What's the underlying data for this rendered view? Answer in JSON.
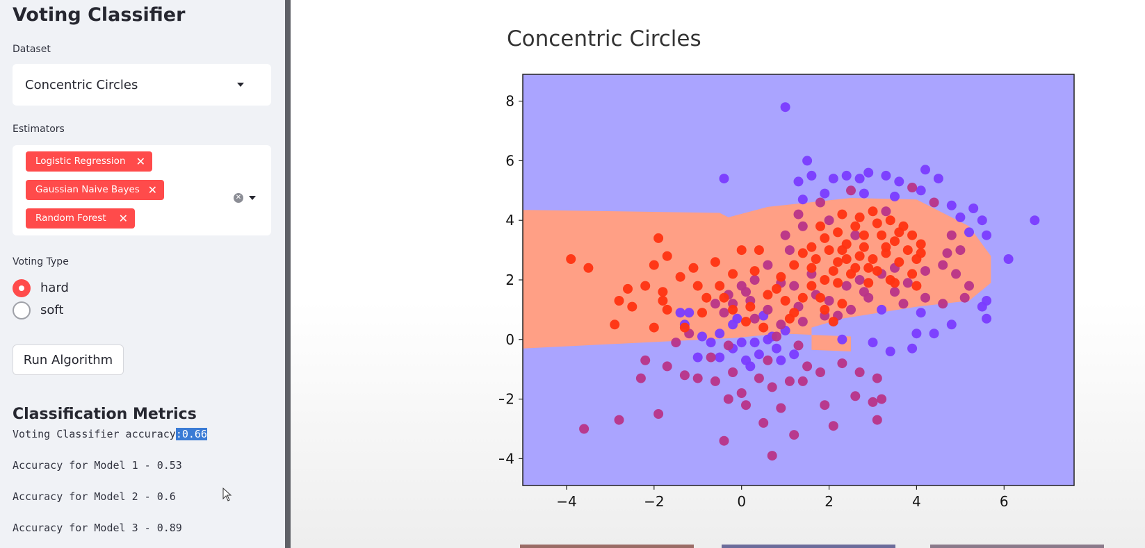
{
  "sidebar": {
    "title": "Voting Classifier",
    "dataset": {
      "label": "Dataset",
      "value": "Concentric Circles"
    },
    "estimators": {
      "label": "Estimators",
      "tags": [
        "Logistic Regression",
        "Gaussian Naive Bayes",
        "Random Forest"
      ]
    },
    "voting": {
      "label": "Voting Type",
      "options": [
        "hard",
        "soft"
      ],
      "selected": "hard"
    },
    "run_button": "Run Algorithm",
    "metrics": {
      "title": "Classification Metrics",
      "voting_prefix": "Voting Classifier accuracy",
      "voting_value": ":0.66",
      "lines": [
        "Accuracy for Model 1 - 0.53",
        "Accuracy for Model 2 - 0.6",
        "Accuracy for Model 3 - 0.89"
      ]
    }
  },
  "chart_data": {
    "type": "scatter",
    "title": "Concentric Circles",
    "xlim": [
      -5,
      7.6
    ],
    "ylim": [
      -4.9,
      8.9
    ],
    "xticks": [
      -4,
      -2,
      0,
      2,
      4,
      6
    ],
    "yticks": [
      -4,
      -2,
      0,
      2,
      4,
      6,
      8
    ],
    "grid": false,
    "background_regions": {
      "class0_color": "#aaa4ff",
      "class1_color": "#ff9f85"
    },
    "series": [
      {
        "color": "#7a3cff",
        "points": [
          [
            -0.4,
            5.4
          ],
          [
            1.0,
            7.8
          ],
          [
            1.5,
            6.0
          ],
          [
            1.6,
            5.5
          ],
          [
            2.1,
            5.4
          ],
          [
            2.4,
            5.5
          ],
          [
            2.7,
            5.4
          ],
          [
            2.9,
            5.6
          ],
          [
            3.3,
            5.5
          ],
          [
            3.6,
            5.3
          ],
          [
            4.2,
            5.7
          ],
          [
            4.5,
            5.4
          ],
          [
            4.1,
            5.0
          ],
          [
            3.5,
            4.8
          ],
          [
            2.8,
            4.9
          ],
          [
            1.3,
            5.3
          ],
          [
            1.9,
            4.9
          ],
          [
            1.4,
            4.7
          ],
          [
            4.8,
            4.5
          ],
          [
            5.0,
            4.1
          ],
          [
            5.3,
            4.4
          ],
          [
            5.5,
            4.0
          ],
          [
            5.2,
            3.6
          ],
          [
            5.6,
            3.5
          ],
          [
            6.7,
            4.0
          ],
          [
            6.1,
            2.7
          ],
          [
            5.6,
            1.3
          ],
          [
            5.5,
            1.1
          ],
          [
            5.6,
            0.7
          ],
          [
            4.8,
            0.5
          ],
          [
            4.1,
            0.9
          ],
          [
            3.2,
            1.0
          ],
          [
            3.4,
            -0.4
          ],
          [
            3.9,
            -0.3
          ],
          [
            3.0,
            -0.1
          ],
          [
            2.3,
            0.0
          ],
          [
            4.0,
            0.2
          ],
          [
            4.4,
            0.2
          ],
          [
            -1.2,
            0.9
          ],
          [
            -1.4,
            0.9
          ],
          [
            -0.2,
            0.5
          ],
          [
            -1.3,
            0.5
          ],
          [
            -0.5,
            0.2
          ],
          [
            0.0,
            -0.1
          ],
          [
            0.3,
            -0.1
          ],
          [
            0.6,
            0.0
          ],
          [
            0.8,
            -0.3
          ],
          [
            -1.0,
            -0.6
          ],
          [
            0.1,
            -0.7
          ],
          [
            0.9,
            -0.7
          ],
          [
            -0.2,
            -0.3
          ],
          [
            0.4,
            -0.5
          ],
          [
            -0.7,
            -0.1
          ],
          [
            0.2,
            -0.9
          ],
          [
            -0.5,
            -0.6
          ],
          [
            0.7,
            0.1
          ],
          [
            1.0,
            0.3
          ],
          [
            -0.1,
            0.7
          ],
          [
            0.5,
            0.8
          ],
          [
            1.2,
            -0.5
          ],
          [
            -0.9,
            0.1
          ]
        ]
      },
      {
        "color": "#b83488",
        "points": [
          [
            0.0,
            -1.8
          ],
          [
            -0.3,
            -2.0
          ],
          [
            0.1,
            -2.2
          ],
          [
            0.7,
            -1.6
          ],
          [
            1.1,
            -1.4
          ],
          [
            1.4,
            -1.4
          ],
          [
            1.8,
            -1.1
          ],
          [
            2.3,
            -0.8
          ],
          [
            2.7,
            -1.1
          ],
          [
            3.1,
            -1.3
          ],
          [
            3.2,
            -2.0
          ],
          [
            3.0,
            -2.1
          ],
          [
            2.6,
            -1.9
          ],
          [
            1.9,
            -2.2
          ],
          [
            0.9,
            -2.3
          ],
          [
            0.5,
            -2.8
          ],
          [
            1.2,
            -3.2
          ],
          [
            2.1,
            -2.9
          ],
          [
            3.1,
            -2.7
          ],
          [
            -0.4,
            -3.4
          ],
          [
            0.7,
            -3.9
          ],
          [
            -1.9,
            -2.5
          ],
          [
            -2.8,
            -2.7
          ],
          [
            -3.6,
            -3.0
          ],
          [
            -2.3,
            -1.3
          ],
          [
            -2.2,
            -0.7
          ],
          [
            -1.7,
            -0.9
          ],
          [
            -1.3,
            -1.2
          ],
          [
            -1.0,
            -1.3
          ],
          [
            -0.6,
            -1.4
          ],
          [
            -0.7,
            -0.6
          ],
          [
            -0.2,
            -1.1
          ],
          [
            0.4,
            -1.3
          ],
          [
            1.5,
            -0.9
          ],
          [
            2.2,
            0.8
          ],
          [
            2.5,
            1.0
          ],
          [
            2.9,
            1.4
          ],
          [
            3.5,
            1.6
          ],
          [
            3.8,
            1.9
          ],
          [
            4.2,
            2.3
          ],
          [
            4.6,
            2.5
          ],
          [
            4.9,
            2.2
          ],
          [
            5.2,
            1.8
          ],
          [
            5.1,
            1.4
          ],
          [
            4.6,
            1.2
          ],
          [
            4.2,
            1.4
          ],
          [
            3.7,
            1.2
          ],
          [
            4.7,
            2.9
          ],
          [
            5.0,
            3.0
          ],
          [
            4.8,
            3.5
          ],
          [
            3.3,
            4.3
          ],
          [
            2.6,
            3.5
          ],
          [
            2.0,
            4.0
          ],
          [
            1.4,
            3.8
          ],
          [
            1.3,
            4.2
          ],
          [
            1.0,
            3.5
          ],
          [
            1.1,
            3.0
          ],
          [
            0.6,
            2.5
          ],
          [
            0.3,
            2.0
          ],
          [
            0.0,
            1.8
          ],
          [
            -0.3,
            1.5
          ],
          [
            -0.6,
            1.2
          ],
          [
            -0.2,
            1.2
          ],
          [
            0.2,
            1.3
          ],
          [
            0.6,
            1.0
          ],
          [
            1.3,
            1.1
          ],
          [
            1.7,
            1.5
          ],
          [
            2.0,
            1.3
          ],
          [
            2.4,
            1.8
          ],
          [
            2.7,
            2.0
          ],
          [
            3.2,
            2.2
          ],
          [
            3.5,
            2.4
          ],
          [
            1.6,
            2.2
          ],
          [
            1.2,
            1.8
          ],
          [
            0.9,
            1.9
          ],
          [
            -0.4,
            0.9
          ],
          [
            0.3,
            0.7
          ],
          [
            0.9,
            0.5
          ],
          [
            1.4,
            0.6
          ],
          [
            1.9,
            0.8
          ],
          [
            0.1,
            1.6
          ],
          [
            2.8,
            1.6
          ],
          [
            4.4,
            4.6
          ],
          [
            3.9,
            5.1
          ],
          [
            2.5,
            5.0
          ],
          [
            1.8,
            4.6
          ],
          [
            0.8,
            0.1
          ],
          [
            0.6,
            -0.7
          ],
          [
            1.3,
            -0.2
          ],
          [
            -0.3,
            -0.2
          ],
          [
            -1.5,
            -0.1
          ],
          [
            -1.2,
            0.2
          ]
        ]
      },
      {
        "color": "#ff3311",
        "points": [
          [
            -3.9,
            2.7
          ],
          [
            -3.5,
            2.4
          ],
          [
            -2.6,
            1.7
          ],
          [
            -2.8,
            1.3
          ],
          [
            -2.5,
            1.1
          ],
          [
            -2.9,
            0.5
          ],
          [
            -2.0,
            2.5
          ],
          [
            -2.2,
            1.8
          ],
          [
            -1.8,
            1.6
          ],
          [
            -1.8,
            1.3
          ],
          [
            -1.7,
            1.0
          ],
          [
            -2.0,
            0.4
          ],
          [
            -1.7,
            2.8
          ],
          [
            -1.4,
            2.1
          ],
          [
            -1.1,
            2.4
          ],
          [
            -1.0,
            1.8
          ],
          [
            -0.8,
            1.4
          ],
          [
            -0.5,
            1.8
          ],
          [
            -0.2,
            2.2
          ],
          [
            -0.6,
            2.6
          ],
          [
            -1.9,
            3.4
          ],
          [
            0.0,
            3.0
          ],
          [
            0.4,
            3.0
          ],
          [
            0.8,
            1.7
          ],
          [
            1.0,
            1.3
          ],
          [
            1.4,
            1.4
          ],
          [
            1.9,
            1.0
          ],
          [
            2.1,
            0.6
          ],
          [
            2.3,
            1.2
          ],
          [
            1.6,
            1.8
          ],
          [
            0.3,
            2.3
          ],
          [
            -0.2,
            1.0
          ],
          [
            0.6,
            1.5
          ],
          [
            1.2,
            0.9
          ],
          [
            1.6,
            2.4
          ],
          [
            1.9,
            2.0
          ],
          [
            2.0,
            3.0
          ],
          [
            2.2,
            3.6
          ],
          [
            2.4,
            3.2
          ],
          [
            2.6,
            3.8
          ],
          [
            2.8,
            3.1
          ],
          [
            3.0,
            2.7
          ],
          [
            3.2,
            3.5
          ],
          [
            3.3,
            2.9
          ],
          [
            3.5,
            3.3
          ],
          [
            3.6,
            2.6
          ],
          [
            3.8,
            3.0
          ],
          [
            4.0,
            2.7
          ],
          [
            4.1,
            3.2
          ],
          [
            2.3,
            4.2
          ],
          [
            2.7,
            4.1
          ],
          [
            3.0,
            4.3
          ],
          [
            3.4,
            4.0
          ],
          [
            3.7,
            3.8
          ],
          [
            3.1,
            3.9
          ],
          [
            2.2,
            2.6
          ],
          [
            2.5,
            2.2
          ],
          [
            2.9,
            2.4
          ],
          [
            3.4,
            2.0
          ],
          [
            3.9,
            2.2
          ],
          [
            1.9,
            3.4
          ],
          [
            2.1,
            2.3
          ],
          [
            2.7,
            2.8
          ],
          [
            3.3,
            3.1
          ],
          [
            3.6,
            3.6
          ],
          [
            2.4,
            2.7
          ],
          [
            2.8,
            3.5
          ],
          [
            3.9,
            3.5
          ],
          [
            4.1,
            2.9
          ],
          [
            1.6,
            3.1
          ],
          [
            1.7,
            2.7
          ],
          [
            2.6,
            2.4
          ],
          [
            1.2,
            2.5
          ],
          [
            0.9,
            2.1
          ],
          [
            1.1,
            0.7
          ],
          [
            -1.3,
            0.4
          ],
          [
            -0.9,
            0.9
          ],
          [
            -0.4,
            1.4
          ],
          [
            0.2,
            1.1
          ],
          [
            0.5,
            0.4
          ],
          [
            0.1,
            0.6
          ],
          [
            1.8,
            1.4
          ],
          [
            2.9,
            1.9
          ],
          [
            3.1,
            2.3
          ],
          [
            3.5,
            1.9
          ],
          [
            4.0,
            1.8
          ],
          [
            2.2,
            1.9
          ],
          [
            1.4,
            2.9
          ],
          [
            1.8,
            3.8
          ],
          [
            2.3,
            3.0
          ]
        ]
      }
    ]
  },
  "colors": {
    "accent": "#ff4b4b",
    "selection": "#3a7bd5"
  },
  "icons": [
    "close-icon",
    "clear-icon",
    "chevron-down-icon",
    "mouse-cursor-icon"
  ]
}
